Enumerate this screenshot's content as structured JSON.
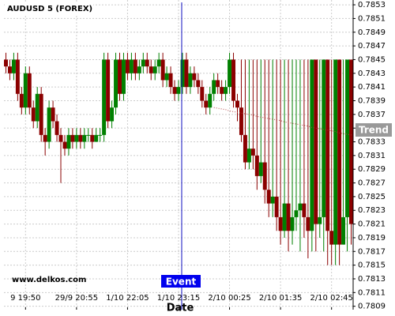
{
  "chart_data": {
    "type": "candlestick",
    "title": "AUDUSD 5 (FOREX)",
    "x_label": "Date",
    "watermark": "www.delkos.com",
    "event_label": "Event",
    "categories": [
      null,
      null,
      null,
      null,
      null,
      "9 19:50",
      null,
      null,
      null,
      null,
      null,
      null,
      null,
      null,
      null,
      null,
      null,
      null,
      "29/9 20:55",
      null,
      null,
      null,
      null,
      null,
      null,
      null,
      null,
      null,
      null,
      null,
      null,
      "1/10 22:05",
      null,
      null,
      null,
      null,
      null,
      null,
      null,
      null,
      null,
      null,
      null,
      null,
      "1/10 23:15",
      null,
      null,
      null,
      null,
      null,
      null,
      null,
      null,
      null,
      null,
      null,
      null,
      "2/10 00:25",
      null,
      null,
      null,
      null,
      null,
      null,
      null,
      null,
      null,
      null,
      null,
      null,
      "2/10 01:35",
      null,
      null,
      null,
      null,
      null,
      null,
      null,
      null,
      null,
      null,
      null,
      null,
      "2/10 02:45",
      null,
      null,
      null,
      null,
      null
    ],
    "open": [
      0.7845,
      0.7844,
      0.7843,
      0.7845,
      0.784,
      0.7838,
      0.7843,
      0.7838,
      0.7836,
      0.784,
      0.7834,
      0.7833,
      0.7838,
      0.7836,
      0.7834,
      0.7833,
      0.7832,
      0.7834,
      0.7833,
      0.7834,
      0.7833,
      0.7834,
      0.7834,
      0.7833,
      0.7834,
      0.7834,
      0.7845,
      0.7836,
      0.7838,
      0.7845,
      0.784,
      0.7845,
      0.7843,
      0.7845,
      0.7843,
      0.7844,
      0.7845,
      0.7844,
      0.7843,
      0.7844,
      0.7845,
      0.7842,
      0.7843,
      0.7841,
      0.784,
      0.7841,
      0.7845,
      0.7841,
      0.7843,
      0.7842,
      0.7841,
      0.7839,
      0.7838,
      0.784,
      0.7842,
      0.7841,
      0.784,
      0.7841,
      0.7845,
      0.7839,
      0.7838,
      0.7834,
      0.783,
      0.7832,
      0.7831,
      0.7828,
      0.783,
      0.7826,
      0.7824,
      0.7825,
      0.7822,
      0.782,
      0.7824,
      0.782,
      0.7822,
      0.7823,
      0.7824,
      0.7822,
      0.782,
      0.7845,
      0.7821,
      0.7822,
      0.7845,
      0.782,
      0.7818,
      0.7845,
      0.7818,
      0.7822,
      0.7845
    ],
    "high": [
      0.7846,
      0.7845,
      0.7846,
      0.7846,
      0.7841,
      0.7844,
      0.7844,
      0.7839,
      0.7841,
      0.7841,
      0.7835,
      0.7839,
      0.7839,
      0.7837,
      0.7835,
      0.7834,
      0.7835,
      0.7835,
      0.7835,
      0.7835,
      0.7835,
      0.7835,
      0.7835,
      0.7835,
      0.7835,
      0.7846,
      0.7846,
      0.7839,
      0.7846,
      0.7846,
      0.7846,
      0.7846,
      0.7846,
      0.7846,
      0.7845,
      0.7846,
      0.7846,
      0.7845,
      0.7845,
      0.7846,
      0.7846,
      0.7844,
      0.7844,
      0.7842,
      0.7842,
      0.7846,
      0.7846,
      0.7844,
      0.7844,
      0.7843,
      0.7842,
      0.784,
      0.7841,
      0.7843,
      0.7843,
      0.7842,
      0.7842,
      0.7846,
      0.7846,
      0.784,
      0.7845,
      0.7845,
      0.7845,
      0.7845,
      0.7845,
      0.7845,
      0.7845,
      0.7845,
      0.7845,
      0.7845,
      0.7845,
      0.7845,
      0.7845,
      0.7845,
      0.7845,
      0.7845,
      0.7845,
      0.7845,
      0.7845,
      0.7845,
      0.7845,
      0.7845,
      0.7845,
      0.7845,
      0.7845,
      0.7845,
      0.7845,
      0.7845,
      0.7845
    ],
    "low": [
      0.7843,
      0.7842,
      0.7842,
      0.7839,
      0.7837,
      0.7837,
      0.7837,
      0.7835,
      0.7835,
      0.7833,
      0.7831,
      0.7832,
      0.7835,
      0.7833,
      0.7827,
      0.7831,
      0.7831,
      0.7832,
      0.7832,
      0.7832,
      0.7832,
      0.7833,
      0.7832,
      0.7833,
      0.7833,
      0.7833,
      0.7835,
      0.7835,
      0.7837,
      0.7839,
      0.7839,
      0.7842,
      0.7842,
      0.7842,
      0.7842,
      0.7843,
      0.7843,
      0.7842,
      0.7842,
      0.7843,
      0.7841,
      0.7841,
      0.784,
      0.7839,
      0.7839,
      0.784,
      0.784,
      0.784,
      0.7841,
      0.784,
      0.7838,
      0.7837,
      0.7837,
      0.7839,
      0.784,
      0.7839,
      0.7839,
      0.784,
      0.7838,
      0.7836,
      0.7833,
      0.7829,
      0.7829,
      0.7829,
      0.7826,
      0.7827,
      0.7824,
      0.7822,
      0.7822,
      0.782,
      0.7818,
      0.7819,
      0.7817,
      0.7818,
      0.782,
      0.7817,
      0.7819,
      0.7816,
      0.7817,
      0.7817,
      0.7819,
      0.7817,
      0.7815,
      0.7815,
      0.7815,
      0.7815,
      0.7818,
      0.7817,
      0.7818
    ],
    "close": [
      0.7844,
      0.7843,
      0.7845,
      0.784,
      0.7838,
      0.7843,
      0.7838,
      0.7836,
      0.784,
      0.7834,
      0.7833,
      0.7838,
      0.7836,
      0.7834,
      0.7833,
      0.7832,
      0.7834,
      0.7833,
      0.7834,
      0.7833,
      0.7834,
      0.7834,
      0.7833,
      0.7834,
      0.7834,
      0.7845,
      0.7836,
      0.7838,
      0.7845,
      0.784,
      0.7845,
      0.7843,
      0.7845,
      0.7843,
      0.7844,
      0.7845,
      0.7844,
      0.7843,
      0.7844,
      0.7845,
      0.7842,
      0.7843,
      0.7841,
      0.784,
      0.7841,
      0.7845,
      0.7841,
      0.7843,
      0.7842,
      0.7841,
      0.7839,
      0.7838,
      0.784,
      0.7842,
      0.7841,
      0.784,
      0.7841,
      0.7845,
      0.7839,
      0.7838,
      0.7834,
      0.783,
      0.7832,
      0.7831,
      0.7828,
      0.783,
      0.7826,
      0.7824,
      0.7825,
      0.7822,
      0.782,
      0.7824,
      0.782,
      0.7822,
      0.7823,
      0.7824,
      0.7822,
      0.782,
      0.7845,
      0.7821,
      0.7822,
      0.7845,
      0.782,
      0.7818,
      0.7845,
      0.7818,
      0.7822,
      0.7845,
      0.7821
    ],
    "up_color": "#008000",
    "down_color": "#8b0000",
    "trend": {
      "name": "Trend",
      "color": "#b04040",
      "values": [
        null,
        null,
        null,
        null,
        null,
        null,
        null,
        null,
        null,
        null,
        null,
        null,
        null,
        null,
        null,
        null,
        null,
        null,
        null,
        null,
        null,
        null,
        null,
        null,
        null,
        null,
        null,
        null,
        null,
        null,
        null,
        null,
        null,
        null,
        null,
        null,
        null,
        null,
        null,
        null,
        null,
        null,
        null,
        null,
        null,
        null,
        null,
        null,
        null,
        null,
        null,
        null,
        null,
        0.7838,
        0.78379,
        0.78378,
        0.78377,
        0.78375,
        0.78374,
        0.78373,
        0.78372,
        0.78371,
        0.7837,
        0.78369,
        0.78367,
        0.78366,
        0.78365,
        0.78364,
        0.78363,
        0.78362,
        0.78361,
        0.78359,
        0.78358,
        0.78357,
        0.78356,
        0.78355,
        0.78354,
        0.78353,
        0.78351,
        0.7835,
        0.78349,
        0.78348,
        0.78347,
        0.78346,
        0.78345,
        0.78343,
        0.78342,
        0.78341,
        0.7834
      ]
    },
    "ylim": [
      0.78085,
      0.78537
    ],
    "yticks": [
      0.7809,
      0.7811,
      0.7813,
      0.7815,
      0.7817,
      0.7819,
      0.7821,
      0.7823,
      0.7825,
      0.7827,
      0.7829,
      0.7831,
      0.7833,
      0.7835,
      0.7837,
      0.7839,
      0.7841,
      0.7843,
      0.7845,
      0.7847,
      0.7849,
      0.7851,
      0.7853
    ],
    "grid": true
  }
}
